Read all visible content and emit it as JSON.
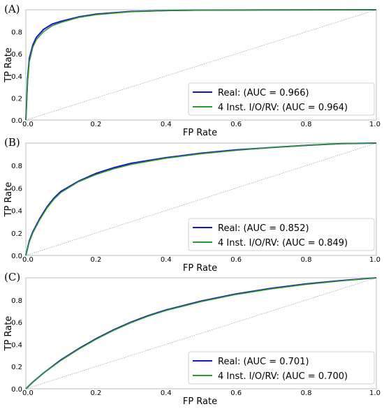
{
  "chart_data": [
    {
      "type": "line",
      "panel_label": "(A)",
      "xlabel": "FP Rate",
      "ylabel": "TP Rate",
      "xlim": [
        0,
        1
      ],
      "ylim": [
        0,
        1
      ],
      "xticks": [
        "0.0",
        "0.2",
        "0.4",
        "0.6",
        "0.8",
        "1.0"
      ],
      "yticks": [
        "0.0",
        "0.2",
        "0.4",
        "0.6",
        "0.8"
      ],
      "legend_position": "bottom-right",
      "series": [
        {
          "name": "Real: (AUC = 0.966)",
          "color": "#1515d6",
          "auc": 0.966,
          "x": [
            0,
            0.005,
            0.01,
            0.02,
            0.03,
            0.05,
            0.075,
            0.1,
            0.15,
            0.2,
            0.3,
            0.4,
            0.5,
            0.7,
            1.0
          ],
          "y": [
            0,
            0.37,
            0.56,
            0.68,
            0.75,
            0.82,
            0.87,
            0.895,
            0.935,
            0.96,
            0.985,
            0.993,
            0.997,
            0.999,
            1.0
          ]
        },
        {
          "name": "4 Inst. I/O/RV: (AUC = 0.964)",
          "color": "#2a9a2a",
          "auc": 0.964,
          "x": [
            0,
            0.005,
            0.01,
            0.02,
            0.03,
            0.05,
            0.075,
            0.1,
            0.15,
            0.2,
            0.3,
            0.4,
            0.5,
            0.7,
            1.0
          ],
          "y": [
            0,
            0.34,
            0.53,
            0.66,
            0.73,
            0.8,
            0.855,
            0.885,
            0.93,
            0.955,
            0.982,
            0.992,
            0.996,
            0.999,
            1.0
          ]
        }
      ]
    },
    {
      "type": "line",
      "panel_label": "(B)",
      "xlabel": "FP Rate",
      "ylabel": "TP Rate",
      "xlim": [
        0,
        1
      ],
      "ylim": [
        0,
        1
      ],
      "xticks": [
        "0.0",
        "0.2",
        "0.4",
        "0.6",
        "0.8",
        "1.0"
      ],
      "yticks": [
        "0.0",
        "0.2",
        "0.4",
        "0.6",
        "0.8"
      ],
      "legend_position": "bottom-right",
      "series": [
        {
          "name": "Real: (AUC = 0.852)",
          "color": "#1515d6",
          "auc": 0.852,
          "x": [
            0,
            0.01,
            0.02,
            0.04,
            0.06,
            0.08,
            0.1,
            0.15,
            0.2,
            0.25,
            0.3,
            0.4,
            0.5,
            0.6,
            0.7,
            0.8,
            0.9,
            1.0
          ],
          "y": [
            0,
            0.13,
            0.21,
            0.33,
            0.43,
            0.51,
            0.57,
            0.66,
            0.73,
            0.78,
            0.82,
            0.87,
            0.91,
            0.94,
            0.96,
            0.98,
            0.995,
            1.0
          ]
        },
        {
          "name": "4 Inst. I/O/RV: (AUC = 0.849)",
          "color": "#2a9a2a",
          "auc": 0.849,
          "x": [
            0,
            0.01,
            0.02,
            0.04,
            0.06,
            0.08,
            0.1,
            0.15,
            0.2,
            0.25,
            0.3,
            0.4,
            0.5,
            0.6,
            0.7,
            0.8,
            0.9,
            1.0
          ],
          "y": [
            0,
            0.12,
            0.2,
            0.32,
            0.42,
            0.5,
            0.56,
            0.655,
            0.72,
            0.77,
            0.81,
            0.865,
            0.905,
            0.935,
            0.96,
            0.98,
            0.995,
            1.0
          ]
        }
      ]
    },
    {
      "type": "line",
      "panel_label": "(C)",
      "xlabel": "FP Rate",
      "ylabel": "TP Rate",
      "xlim": [
        0,
        1
      ],
      "ylim": [
        0,
        1
      ],
      "xticks": [
        "0.0",
        "0.2",
        "0.4",
        "0.6",
        "0.8",
        "1.0"
      ],
      "yticks": [
        "0.0",
        "0.2",
        "0.4",
        "0.6",
        "0.8"
      ],
      "legend_position": "bottom-right",
      "series": [
        {
          "name": "Real: (AUC = 0.701)",
          "color": "#1515d6",
          "auc": 0.701,
          "x": [
            0,
            0.02,
            0.05,
            0.1,
            0.15,
            0.2,
            0.25,
            0.3,
            0.35,
            0.4,
            0.5,
            0.6,
            0.7,
            0.8,
            0.9,
            1.0
          ],
          "y": [
            0,
            0.06,
            0.14,
            0.26,
            0.36,
            0.45,
            0.53,
            0.6,
            0.66,
            0.71,
            0.79,
            0.855,
            0.905,
            0.945,
            0.975,
            1.0
          ]
        },
        {
          "name": "4 Inst. I/O/RV: (AUC = 0.700)",
          "color": "#2a9a2a",
          "auc": 0.7,
          "x": [
            0,
            0.02,
            0.05,
            0.1,
            0.15,
            0.2,
            0.25,
            0.3,
            0.35,
            0.4,
            0.5,
            0.6,
            0.7,
            0.8,
            0.9,
            1.0
          ],
          "y": [
            0,
            0.06,
            0.14,
            0.255,
            0.355,
            0.445,
            0.525,
            0.595,
            0.655,
            0.705,
            0.785,
            0.85,
            0.9,
            0.94,
            0.972,
            1.0
          ]
        }
      ]
    }
  ]
}
